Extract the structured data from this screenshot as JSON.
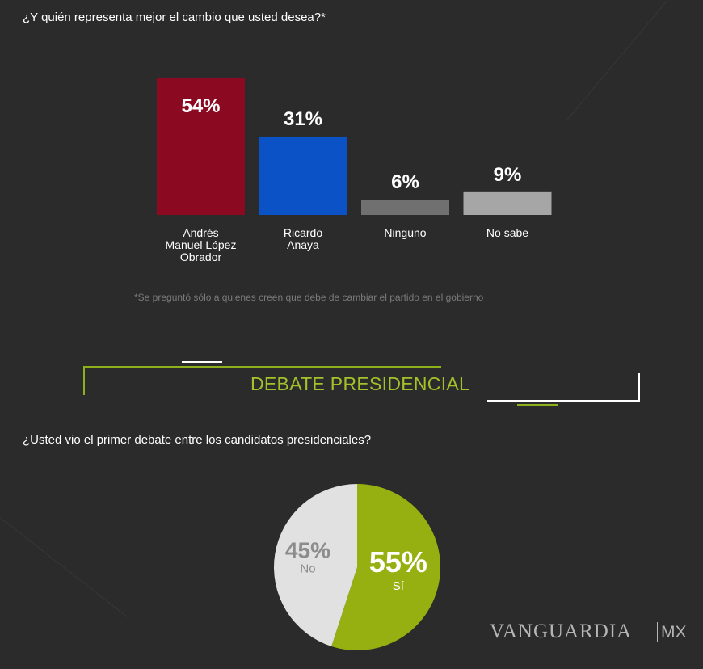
{
  "question1": "¿Y quién representa mejor el cambio que usted desea?*",
  "footnote": "*Se preguntó sólo a quienes creen que debe de cambiar el partido en el gobierno",
  "section_title": "DEBATE PRESIDENCIAL",
  "question2": "¿Usted vio el primer debate entre los candidatos presidenciales?",
  "brand": {
    "name": "VANGUARDIA",
    "suffix": "MX"
  },
  "chart_data": [
    {
      "type": "bar",
      "categories": [
        "Andrés Manuel López Obrador",
        "Ricardo Anaya",
        "Ninguno",
        "No sabe"
      ],
      "category_lines": [
        [
          "Andrés",
          "Manuel López",
          "Obrador"
        ],
        [
          "Ricardo",
          "Anaya"
        ],
        [
          "Ninguno"
        ],
        [
          "No sabe"
        ]
      ],
      "values": [
        54,
        31,
        6,
        9
      ],
      "labels": [
        "54%",
        "31%",
        "6%",
        "9%"
      ],
      "colors": [
        "#8b0a21",
        "#0a52c5",
        "#707070",
        "#a6a6a6"
      ],
      "ylim": [
        0,
        54
      ]
    },
    {
      "type": "pie",
      "categories": [
        "Sí",
        "No"
      ],
      "values": [
        55,
        45
      ],
      "labels": [
        "55%",
        "45%"
      ],
      "colors": [
        "#96b012",
        "#e1e1e1"
      ]
    }
  ]
}
